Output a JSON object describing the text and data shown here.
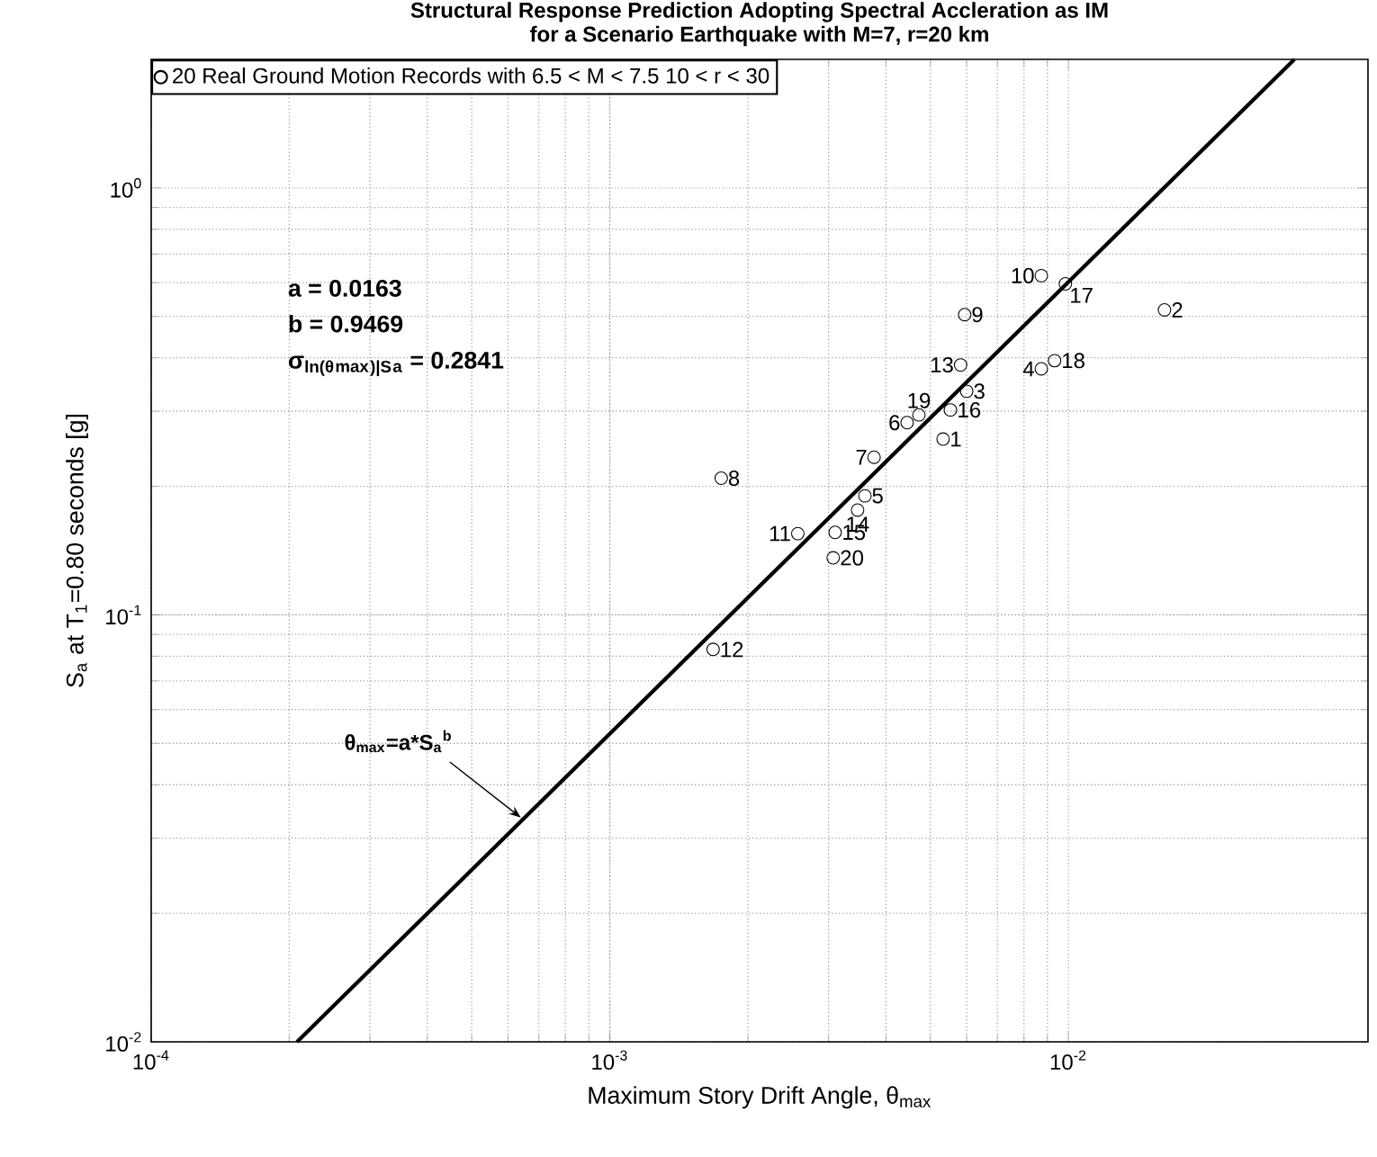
{
  "chart_data": {
    "type": "scatter",
    "title": "Structural Response Prediction Adopting Spectral Accleration as IM",
    "subtitle": "for a Scenario Earthquake with M=7, r=20 km",
    "xlabel": "Maximum Story Drift Angle, θ$_{max}$",
    "ylabel": "S$_{a}$ at T$_{1}$=0.80 seconds [g]",
    "log": "xy",
    "grid": true,
    "legend": "top left",
    "marker": "circle",
    "xlim": [
      0.0001,
      0.045
    ],
    "ylim": [
      0.01,
      2
    ],
    "xticks": [
      {
        "value": 0.0001,
        "label": "10$^{-4}$"
      },
      {
        "value": 0.001,
        "label": "10$^{-3}$"
      },
      {
        "value": 0.01,
        "label": "10$^{-2}$"
      }
    ],
    "yticks": [
      {
        "value": 0.01,
        "label": "10$^{-2}$"
      },
      {
        "value": 0.1,
        "label": "10$^{-1}$"
      },
      {
        "value": 1,
        "label": "10$^{0}$"
      }
    ],
    "series": [
      {
        "name": "20 Real Ground Motion Records with 6.5 < M < 7.5  10 < r < 30",
        "color": "#000000",
        "x": [
          0.00533,
          0.0162,
          0.006,
          0.00873,
          0.0036,
          0.00445,
          0.00377,
          0.00175,
          0.00594,
          0.00873,
          0.00257,
          0.00168,
          0.00582,
          0.00347,
          0.0031,
          0.00553,
          0.00985,
          0.00933,
          0.00472,
          0.00307
        ],
        "values": [
          0.258,
          0.518,
          0.334,
          0.377,
          0.19,
          0.282,
          0.234,
          0.209,
          0.505,
          0.623,
          0.155,
          0.083,
          0.385,
          0.176,
          0.156,
          0.302,
          0.596,
          0.394,
          0.294,
          0.136
        ]
      },
      {
        "type": "line",
        "color": "#000000",
        "line_style": "solid",
        "marker": "none",
        "x": [
          0.000208,
          0.0311
        ],
        "values": [
          0.01,
          2
        ]
      }
    ],
    "annotations": [
      "a = 0.0163",
      "b = 0.9469",
      "σ$_{ln(θ}$$_{max}$$_{)|S}$$_{a}$ = 0.2841",
      {
        "text": "θ$_{max}$=a*S$_{a}$$^{b}$",
        "x": 0.00064,
        "y": 0.0335
      },
      {
        "text": "1",
        "x": 0.00533,
        "y": 0.258
      },
      {
        "text": "2",
        "x": 0.0162,
        "y": 0.518
      },
      {
        "text": "3",
        "x": 0.006,
        "y": 0.334
      },
      {
        "text": "4",
        "x": 0.00873,
        "y": 0.377
      },
      {
        "text": "5",
        "x": 0.0036,
        "y": 0.19
      },
      {
        "text": "6",
        "x": 0.00445,
        "y": 0.282
      },
      {
        "text": "7",
        "x": 0.00377,
        "y": 0.234
      },
      {
        "text": "8",
        "x": 0.00175,
        "y": 0.209
      },
      {
        "text": "9",
        "x": 0.00594,
        "y": 0.505
      },
      {
        "text": "10",
        "x": 0.00873,
        "y": 0.623
      },
      {
        "text": "11",
        "x": 0.00257,
        "y": 0.155
      },
      {
        "text": "12",
        "x": 0.00168,
        "y": 0.083
      },
      {
        "text": "13",
        "x": 0.00582,
        "y": 0.385
      },
      {
        "text": "14",
        "x": 0.00347,
        "y": 0.176
      },
      {
        "text": "15",
        "x": 0.0031,
        "y": 0.156
      },
      {
        "text": "16",
        "x": 0.00553,
        "y": 0.302
      },
      {
        "text": "17",
        "x": 0.00985,
        "y": 0.596
      },
      {
        "text": "18",
        "x": 0.00933,
        "y": 0.394
      },
      {
        "text": "19",
        "x": 0.00472,
        "y": 0.294
      },
      {
        "text": "20",
        "x": 0.00307,
        "y": 0.136
      }
    ]
  }
}
